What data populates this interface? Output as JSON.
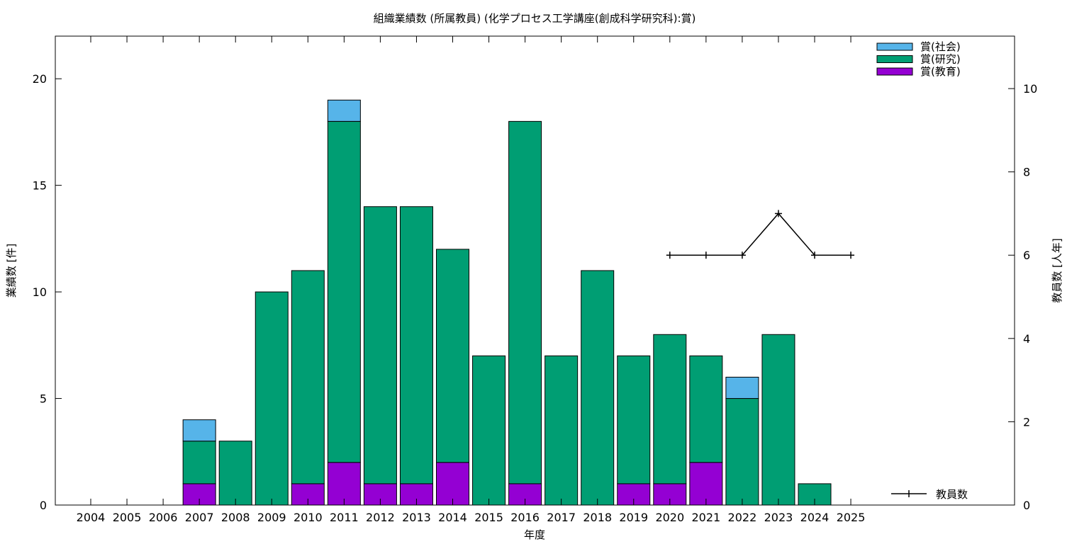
{
  "chart_data": {
    "type": "bar",
    "stacked": true,
    "title": "組織業績数 (所属教員) (化学プロセス工学講座(創成科学研究科):賞)",
    "xlabel": "年度",
    "ylabel": "業績数 [件]",
    "y2label": "教員数 [人年]",
    "categories": [
      "2004",
      "2005",
      "2006",
      "2007",
      "2008",
      "2009",
      "2010",
      "2011",
      "2012",
      "2013",
      "2014",
      "2015",
      "2016",
      "2017",
      "2018",
      "2019",
      "2020",
      "2021",
      "2022",
      "2023",
      "2024",
      "2025"
    ],
    "ylim": [
      0,
      22
    ],
    "y2lim": [
      0,
      11.26
    ],
    "yticks": [
      0,
      5,
      10,
      15,
      20
    ],
    "y2ticks": [
      0,
      2,
      4,
      6,
      8,
      10
    ],
    "grid": false,
    "legend_position": "top-right",
    "series": [
      {
        "name": "賞(教育)",
        "color": "#9400d3",
        "values": [
          0,
          0,
          0,
          1,
          0,
          0,
          1,
          2,
          1,
          1,
          2,
          0,
          1,
          0,
          0,
          1,
          1,
          2,
          0,
          0,
          0,
          0
        ]
      },
      {
        "name": "賞(研究)",
        "color": "#009e73",
        "values": [
          0,
          0,
          0,
          2,
          3,
          10,
          10,
          16,
          13,
          13,
          10,
          7,
          17,
          7,
          11,
          6,
          7,
          5,
          5,
          8,
          1,
          0
        ]
      },
      {
        "name": "賞(社会)",
        "color": "#56b4e9",
        "values": [
          0,
          0,
          0,
          1,
          0,
          0,
          0,
          1,
          0,
          0,
          0,
          0,
          0,
          0,
          0,
          0,
          0,
          0,
          1,
          0,
          0,
          0
        ]
      }
    ],
    "line": {
      "name": "教員数",
      "color": "#000000",
      "axis": "y2",
      "points": [
        {
          "x": "2020",
          "y": 6
        },
        {
          "x": "2021",
          "y": 6
        },
        {
          "x": "2022",
          "y": 6
        },
        {
          "x": "2023",
          "y": 7
        },
        {
          "x": "2024",
          "y": 6
        },
        {
          "x": "2025",
          "y": 6
        }
      ]
    }
  }
}
